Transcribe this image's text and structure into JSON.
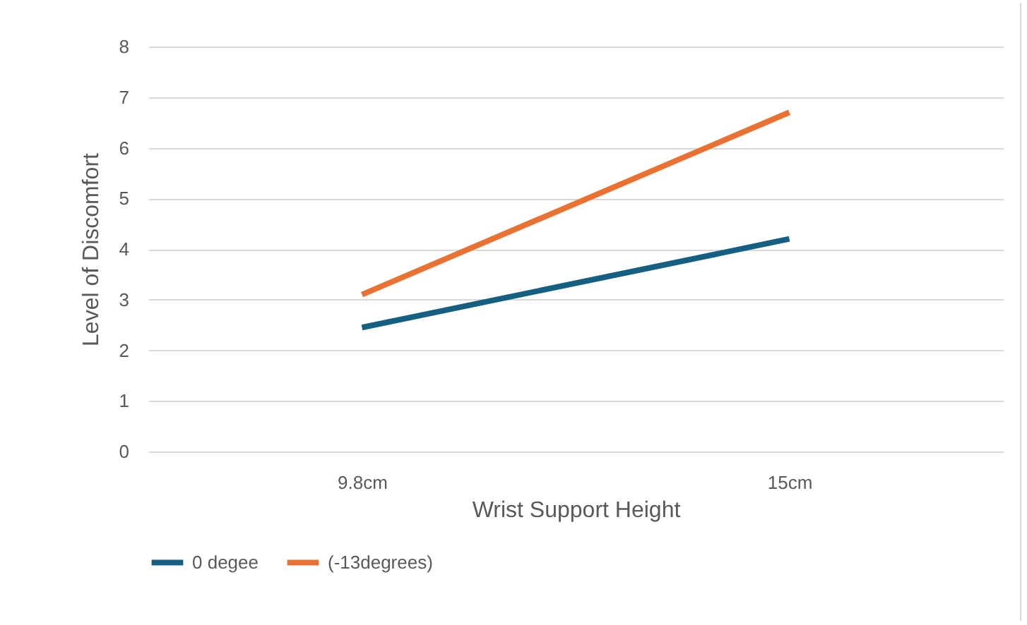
{
  "chart_data": {
    "type": "line",
    "xlabel": "Wrist Support Height",
    "ylabel": "Level of Discomfort",
    "categories": [
      "9.8cm",
      "15cm"
    ],
    "series": [
      {
        "name": "0 degee",
        "color": "#156082",
        "values": [
          2.45,
          4.2
        ]
      },
      {
        "name": "(-13degrees)",
        "color": "#e97132",
        "values": [
          3.1,
          6.7
        ]
      }
    ],
    "ylim": [
      0,
      8
    ],
    "yticks": [
      0,
      1,
      2,
      3,
      4,
      5,
      6,
      7,
      8
    ],
    "grid": "y",
    "legend": "bottom",
    "marker": "none",
    "line_style": "solid"
  }
}
